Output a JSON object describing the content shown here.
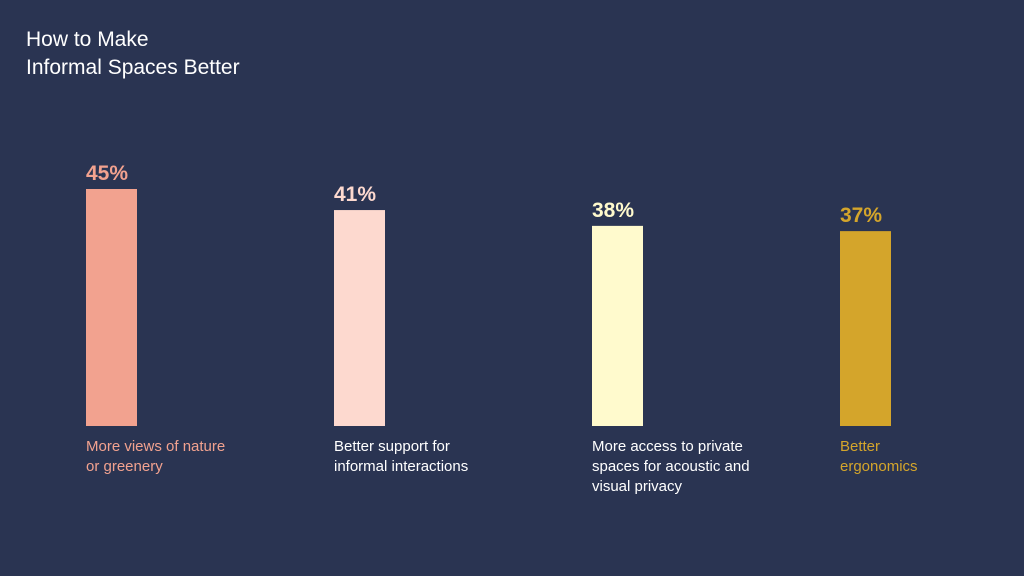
{
  "title_lines": [
    "How to Make",
    "Informal Spaces Better"
  ],
  "chart_data": {
    "type": "bar",
    "title": "How to Make Informal Spaces Better",
    "categories": [
      [
        "More views of nature",
        "or greenery"
      ],
      [
        "Better support for",
        "informal interactions"
      ],
      [
        "More access to private",
        "spaces for acoustic and",
        "visual privacy"
      ],
      [
        "Better",
        "ergonomics"
      ]
    ],
    "values": [
      45,
      41,
      38,
      37
    ],
    "value_labels": [
      "45%",
      "41%",
      "38%",
      "37%"
    ],
    "colors": [
      "#f2a28f",
      "#fdd9cf",
      "#fffacd",
      "#d4a52b"
    ],
    "ylim": [
      0,
      45
    ],
    "grid": false
  }
}
